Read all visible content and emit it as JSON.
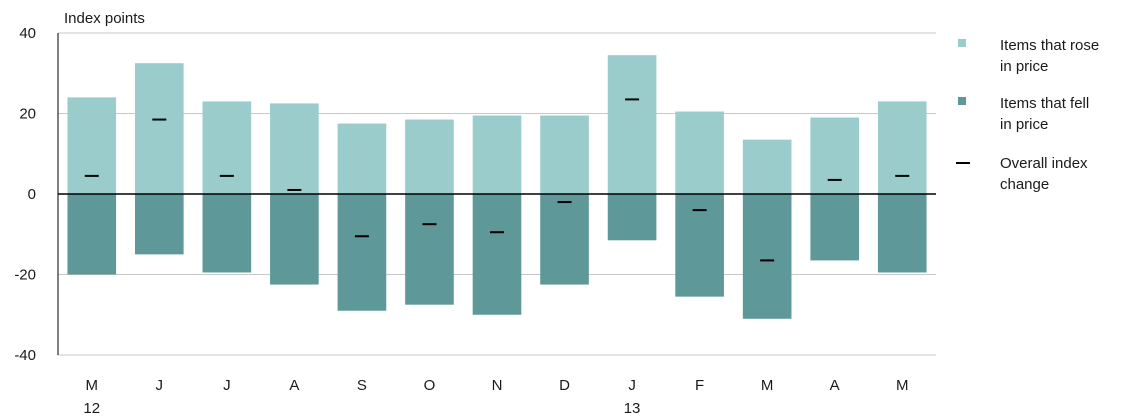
{
  "chart_data": {
    "type": "bar",
    "ylabel": "Index points",
    "ylim": [
      -40,
      40
    ],
    "yticks": [
      -40,
      -20,
      0,
      20,
      40
    ],
    "grid": true,
    "legend_position": "right",
    "categories": [
      {
        "label": "M",
        "sublabel": "12"
      },
      {
        "label": "J",
        "sublabel": ""
      },
      {
        "label": "J",
        "sublabel": ""
      },
      {
        "label": "A",
        "sublabel": ""
      },
      {
        "label": "S",
        "sublabel": ""
      },
      {
        "label": "O",
        "sublabel": ""
      },
      {
        "label": "N",
        "sublabel": ""
      },
      {
        "label": "D",
        "sublabel": ""
      },
      {
        "label": "J",
        "sublabel": "13"
      },
      {
        "label": "F",
        "sublabel": ""
      },
      {
        "label": "M",
        "sublabel": ""
      },
      {
        "label": "A",
        "sublabel": ""
      },
      {
        "label": "M",
        "sublabel": ""
      }
    ],
    "series": [
      {
        "name": "Items that rose in price",
        "name_lines": [
          "Items that rose",
          "in price"
        ],
        "color": "#9acccc",
        "values": [
          24,
          32.5,
          23,
          22.5,
          17.5,
          18.5,
          19.5,
          19.5,
          34.5,
          20.5,
          13.5,
          19,
          23
        ]
      },
      {
        "name": "Items that fell in price",
        "name_lines": [
          "Items that fell",
          "in price"
        ],
        "color": "#5f9898",
        "values": [
          -20,
          -15,
          -19.5,
          -22.5,
          -29,
          -27.5,
          -30,
          -22.5,
          -11.5,
          -25.5,
          -31,
          -16.5,
          -19.5
        ]
      },
      {
        "name": "Overall index change",
        "name_lines": [
          "Overall index",
          "change"
        ],
        "color": "#000000",
        "values": [
          4.5,
          18.5,
          4.5,
          1,
          -10.5,
          -7.5,
          -9.5,
          -2,
          23.5,
          -4,
          -16.5,
          3.5,
          4.5
        ]
      }
    ]
  }
}
